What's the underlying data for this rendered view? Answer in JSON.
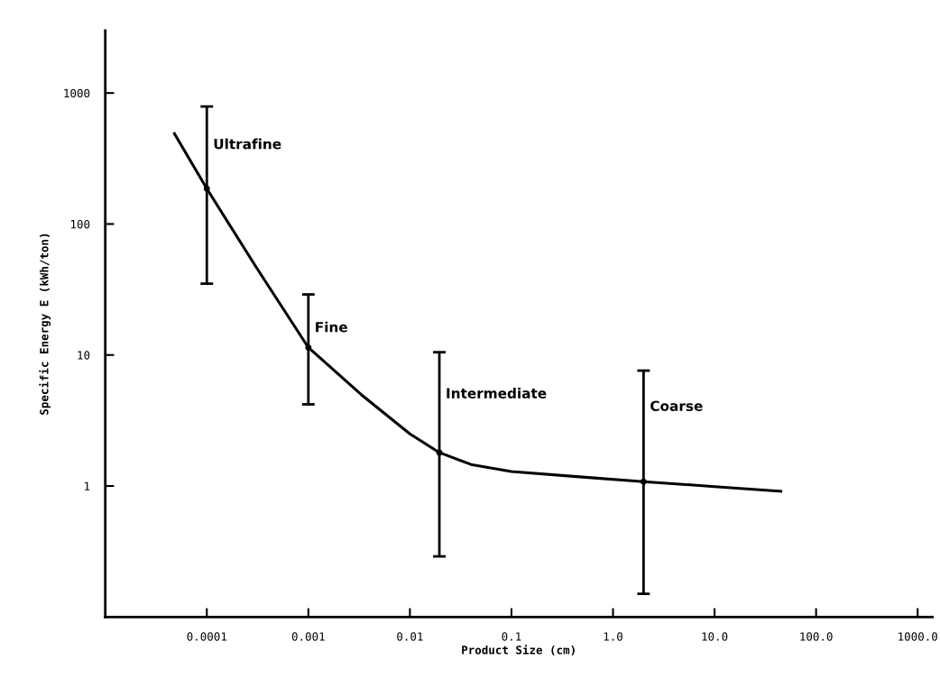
{
  "chart_data": {
    "type": "line",
    "xlabel": "Product Size (cm)",
    "ylabel": "Specific Energy E (kWh/ton)",
    "log": "xy",
    "grid": false,
    "legend": false,
    "marker": "none",
    "line_style": "solid",
    "xlim": [
      1e-05,
      1400
    ],
    "ylim": [
      0.1,
      3000
    ],
    "xticks": [
      0.0001,
      0.001,
      0.01,
      0.1,
      {
        "value": 1,
        "label": "1.0"
      },
      {
        "value": 10,
        "label": "10.0"
      },
      {
        "value": 100,
        "label": "100.0"
      },
      {
        "value": 1000,
        "label": "1000.0"
      }
    ],
    "yticks": [
      1,
      10,
      100,
      1000
    ],
    "series": [
      {
        "color": "#000000",
        "x": [
          4.8e-05,
          0.0001,
          0.0003,
          0.001,
          0.0033,
          0.01,
          0.0195,
          0.04,
          0.1,
          0.5,
          2.0,
          10,
          45
        ],
        "values": [
          490,
          186,
          48,
          11.4,
          5.0,
          2.5,
          1.8,
          1.46,
          1.29,
          1.17,
          1.08,
          0.99,
          0.91
        ]
      },
      {
        "type": "scatter",
        "color": "#000000",
        "marker": "circle",
        "x": [
          0.0001,
          0.001,
          0.0195,
          2.0
        ],
        "values": [
          186,
          11.4,
          1.8,
          1.08
        ],
        "errors": [
          [
            35,
            790
          ],
          [
            4.2,
            29
          ],
          [
            0.29,
            10.5
          ],
          [
            0.15,
            7.6
          ]
        ]
      }
    ],
    "annotations": [
      {
        "text": "Ultrafine",
        "x": 0.0001,
        "y": 400
      },
      {
        "text": "Fine",
        "x": 0.001,
        "y": 16
      },
      {
        "text": "Intermediate",
        "x": 0.0195,
        "y": 5
      },
      {
        "text": "Coarse",
        "x": 2.0,
        "y": 4
      }
    ]
  }
}
